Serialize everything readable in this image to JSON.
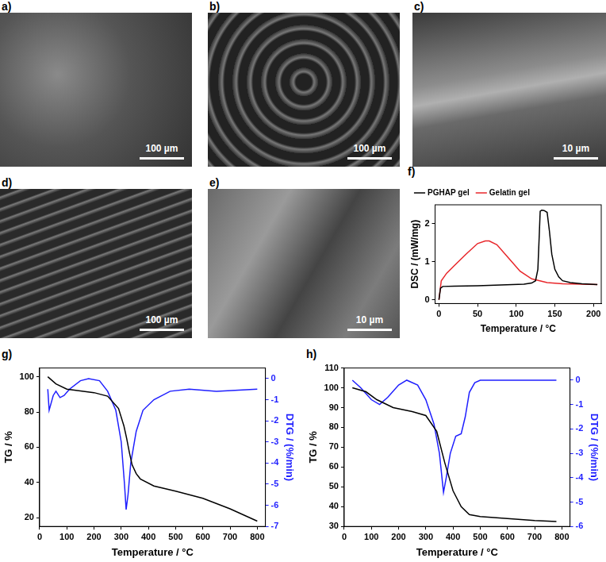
{
  "panels": [
    {
      "label": "a)",
      "scale_bar": "100 µm"
    },
    {
      "label": "b)",
      "scale_bar": "100 µm"
    },
    {
      "label": "c)",
      "scale_bar": "10 µm"
    },
    {
      "label": "d)",
      "scale_bar": "100 µm"
    },
    {
      "label": "e)",
      "scale_bar": "10 µm"
    }
  ],
  "chart_data": [
    {
      "label": "f)",
      "type": "line",
      "x_label": "Temperature / °C",
      "y_label": "DSC / (mW/mg)",
      "xlim": [
        -5,
        210
      ],
      "xticks": [
        0,
        50,
        100,
        150,
        200
      ],
      "ylim": [
        -0.1,
        2.5
      ],
      "yticks": [
        0,
        1,
        2
      ],
      "grid": false,
      "legend": "upper left",
      "series": [
        {
          "name": "PGHAP gel",
          "color": "#000000",
          "x": [
            0,
            2,
            5,
            20,
            50,
            80,
            110,
            120,
            125,
            128,
            130,
            131,
            133,
            136,
            140,
            143,
            146,
            150,
            155,
            160,
            170,
            185,
            205
          ],
          "values": [
            0,
            0.3,
            0.35,
            0.36,
            0.37,
            0.39,
            0.41,
            0.44,
            0.5,
            0.8,
            1.8,
            2.33,
            2.36,
            2.35,
            2.3,
            1.8,
            1.2,
            0.8,
            0.6,
            0.5,
            0.45,
            0.42,
            0.4
          ]
        },
        {
          "name": "Gelatin gel",
          "color": "#e8262a",
          "x": [
            0,
            3,
            10,
            20,
            35,
            50,
            60,
            65,
            75,
            90,
            105,
            120,
            140,
            160,
            185,
            205
          ],
          "values": [
            0,
            0.5,
            0.7,
            0.9,
            1.2,
            1.48,
            1.55,
            1.55,
            1.45,
            1.1,
            0.75,
            0.55,
            0.45,
            0.42,
            0.41,
            0.4
          ]
        }
      ]
    },
    {
      "label": "g)",
      "type": "line",
      "x_label": "Temperature / °C",
      "y_label": "TG / %",
      "y2_label": "DTG / (%/min)",
      "xlim": [
        0,
        830
      ],
      "xticks": [
        0,
        100,
        200,
        300,
        400,
        500,
        600,
        700,
        800
      ],
      "ylim": [
        15,
        105
      ],
      "yticks": [
        20,
        40,
        60,
        80,
        100
      ],
      "y2lim": [
        -7,
        0.5
      ],
      "y2ticks": [
        -7,
        -6,
        -5,
        -4,
        -3,
        -2,
        -1,
        0
      ],
      "grid": false,
      "series": [
        {
          "color": "#000000",
          "x": [
            30,
            60,
            100,
            150,
            200,
            250,
            290,
            310,
            320,
            330,
            340,
            355,
            370,
            420,
            500,
            600,
            700,
            800
          ],
          "values": [
            100,
            96,
            93,
            92,
            91,
            89,
            82,
            72,
            65,
            57,
            50,
            45,
            42,
            38,
            35,
            31,
            25,
            18
          ]
        },
        {
          "color": "#1f1fff",
          "axis": "y2",
          "x": [
            30,
            35,
            50,
            60,
            75,
            90,
            110,
            150,
            180,
            220,
            250,
            280,
            300,
            312,
            318,
            325,
            335,
            355,
            380,
            420,
            480,
            550,
            650,
            800
          ],
          "values": [
            -0.5,
            -1.5,
            -0.8,
            -0.6,
            -0.9,
            -0.8,
            -0.5,
            -0.1,
            0,
            -0.1,
            -0.6,
            -1.5,
            -3,
            -5,
            -6.2,
            -5.5,
            -4,
            -2.5,
            -1.5,
            -1,
            -0.6,
            -0.5,
            -0.6,
            -0.5
          ]
        }
      ]
    },
    {
      "label": "h)",
      "type": "line",
      "x_label": "Temperature / °C",
      "y_label": "TG / %",
      "y2_label": "DTG / (%/min)",
      "xlim": [
        0,
        830
      ],
      "xticks": [
        0,
        100,
        200,
        300,
        400,
        500,
        600,
        700,
        800
      ],
      "ylim": [
        30,
        110
      ],
      "yticks": [
        30,
        40,
        50,
        60,
        70,
        80,
        90,
        100,
        110
      ],
      "y2lim": [
        -6,
        0.5
      ],
      "y2ticks": [
        -6,
        -5,
        -4,
        -3,
        -2,
        -1,
        0
      ],
      "grid": false,
      "series": [
        {
          "color": "#000000",
          "x": [
            30,
            80,
            120,
            180,
            250,
            300,
            340,
            370,
            400,
            430,
            460,
            500,
            600,
            700,
            780
          ],
          "values": [
            100,
            98,
            94,
            90,
            88,
            86,
            78,
            62,
            48,
            40,
            36,
            35,
            34,
            33,
            32.5
          ]
        },
        {
          "color": "#1f1fff",
          "axis": "y2",
          "x": [
            30,
            60,
            100,
            130,
            160,
            200,
            230,
            270,
            300,
            330,
            350,
            365,
            375,
            390,
            410,
            430,
            445,
            460,
            480,
            500,
            780
          ],
          "values": [
            0,
            -0.3,
            -0.8,
            -1,
            -0.7,
            -0.2,
            0,
            -0.2,
            -0.8,
            -1.8,
            -3,
            -4.6,
            -4,
            -3,
            -2.3,
            -2.2,
            -1.5,
            -0.5,
            -0.1,
            0,
            0
          ]
        }
      ]
    }
  ]
}
